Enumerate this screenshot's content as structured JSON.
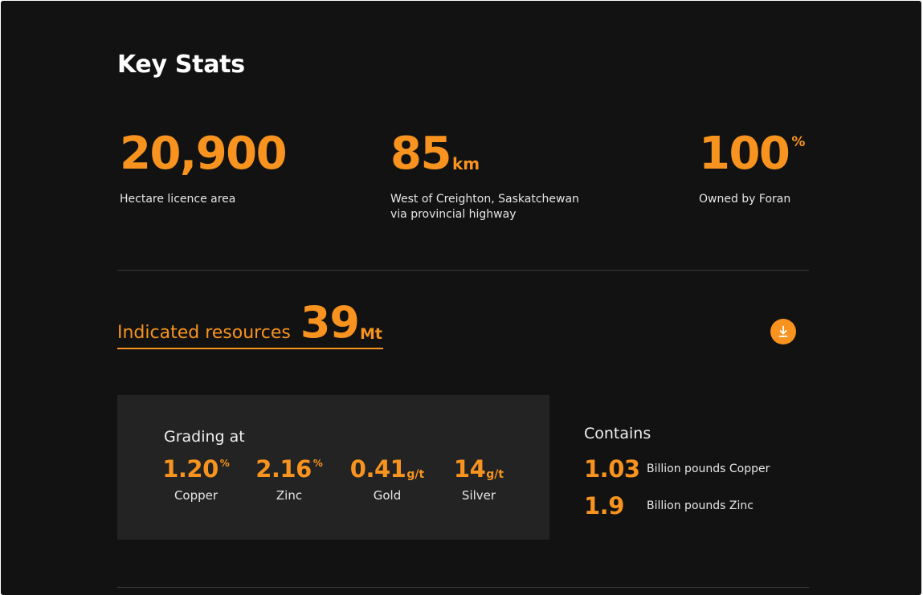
{
  "title": "Key Stats",
  "stats": [
    {
      "value": "20,900",
      "unit": "",
      "caption": "Hectare licence area"
    },
    {
      "value": "85",
      "unit": "km",
      "caption": "West of Creighton, Saskatchewan\nvia provincial highway"
    },
    {
      "value": "100",
      "unit": "%",
      "caption": "Owned by Foran"
    }
  ],
  "indicated": {
    "label": "Indicated resources",
    "value": "39",
    "unit": "Mt"
  },
  "download": {
    "icon": "download-icon"
  },
  "grading": {
    "title": "Grading at",
    "items": [
      {
        "value": "1.20",
        "unit": "%",
        "label": "Copper"
      },
      {
        "value": "2.16",
        "unit": "%",
        "label": "Zinc"
      },
      {
        "value": "0.41",
        "unit": "g/t",
        "label": "Gold"
      },
      {
        "value": "14",
        "unit": "g/t",
        "label": "Silver"
      }
    ]
  },
  "contains": {
    "title": "Contains",
    "items": [
      {
        "value": "1.03",
        "label": "Billion pounds Copper"
      },
      {
        "value": "1.9",
        "label": "Billion pounds Zinc"
      }
    ]
  },
  "colors": {
    "accent": "#f7931e",
    "background": "#121212",
    "panel": "#232323"
  }
}
